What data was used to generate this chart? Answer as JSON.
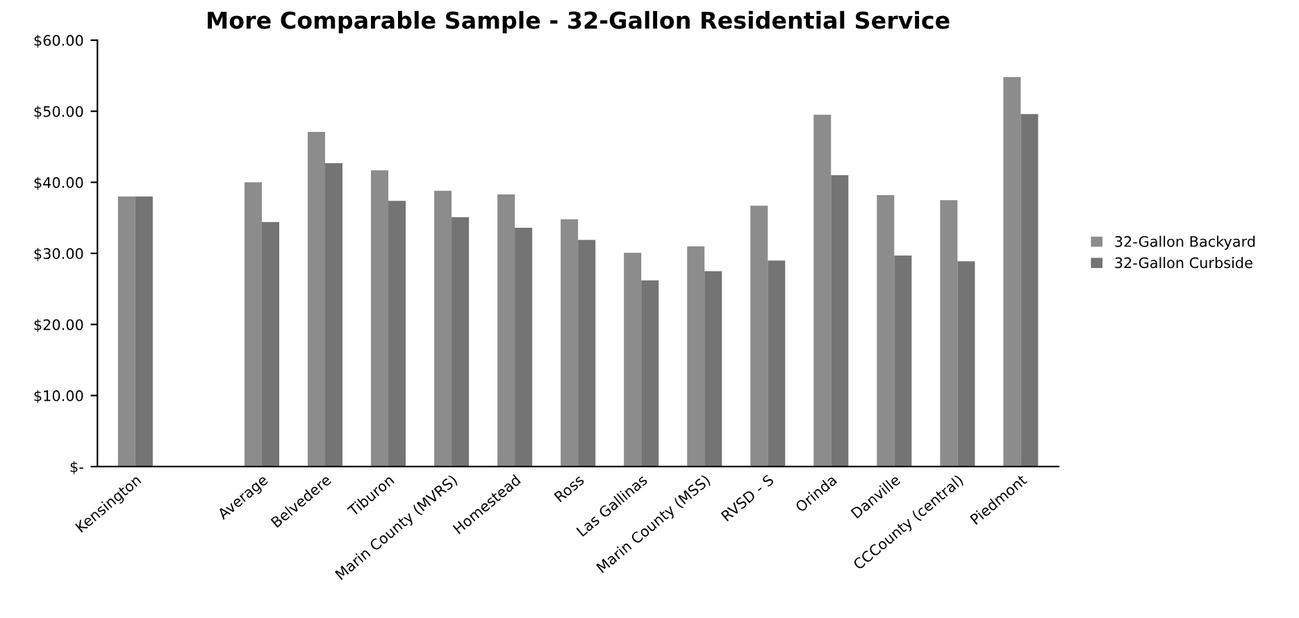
{
  "chart_data": {
    "type": "bar",
    "title": "More Comparable Sample - 32-Gallon Residential Service",
    "categories": [
      "Kensington",
      null,
      "Average",
      "Belvedere",
      "Tiburon",
      "Marin County (MVRS)",
      "Homestead",
      "Ross",
      "Las Gallinas",
      "Marin County (MSS)",
      "RVSD - S",
      "Orinda",
      "Danville",
      "CCCounty (central)",
      "Piedmont"
    ],
    "series": [
      {
        "name": "32-Gallon Backyard",
        "color": "#8c8c8c",
        "values": [
          38.0,
          null,
          40.0,
          47.1,
          41.7,
          38.8,
          38.3,
          34.8,
          30.1,
          31.0,
          36.7,
          49.5,
          38.2,
          37.5,
          54.8
        ]
      },
      {
        "name": "32-Gallon Curbside",
        "color": "#747474",
        "values": [
          38.0,
          null,
          34.4,
          42.7,
          37.4,
          35.1,
          33.6,
          31.9,
          26.2,
          27.5,
          29.0,
          41.0,
          29.7,
          28.9,
          49.6
        ]
      }
    ],
    "ylim": [
      0,
      60
    ],
    "yticks": [
      {
        "value": 0,
        "label": "$-"
      },
      {
        "value": 10,
        "label": "$10.00"
      },
      {
        "value": 20,
        "label": "$20.00"
      },
      {
        "value": 30,
        "label": "$30.00"
      },
      {
        "value": 40,
        "label": "$40.00"
      },
      {
        "value": 50,
        "label": "$50.00"
      },
      {
        "value": 60,
        "label": "$60.00"
      }
    ],
    "grid": false,
    "legend": "right"
  }
}
